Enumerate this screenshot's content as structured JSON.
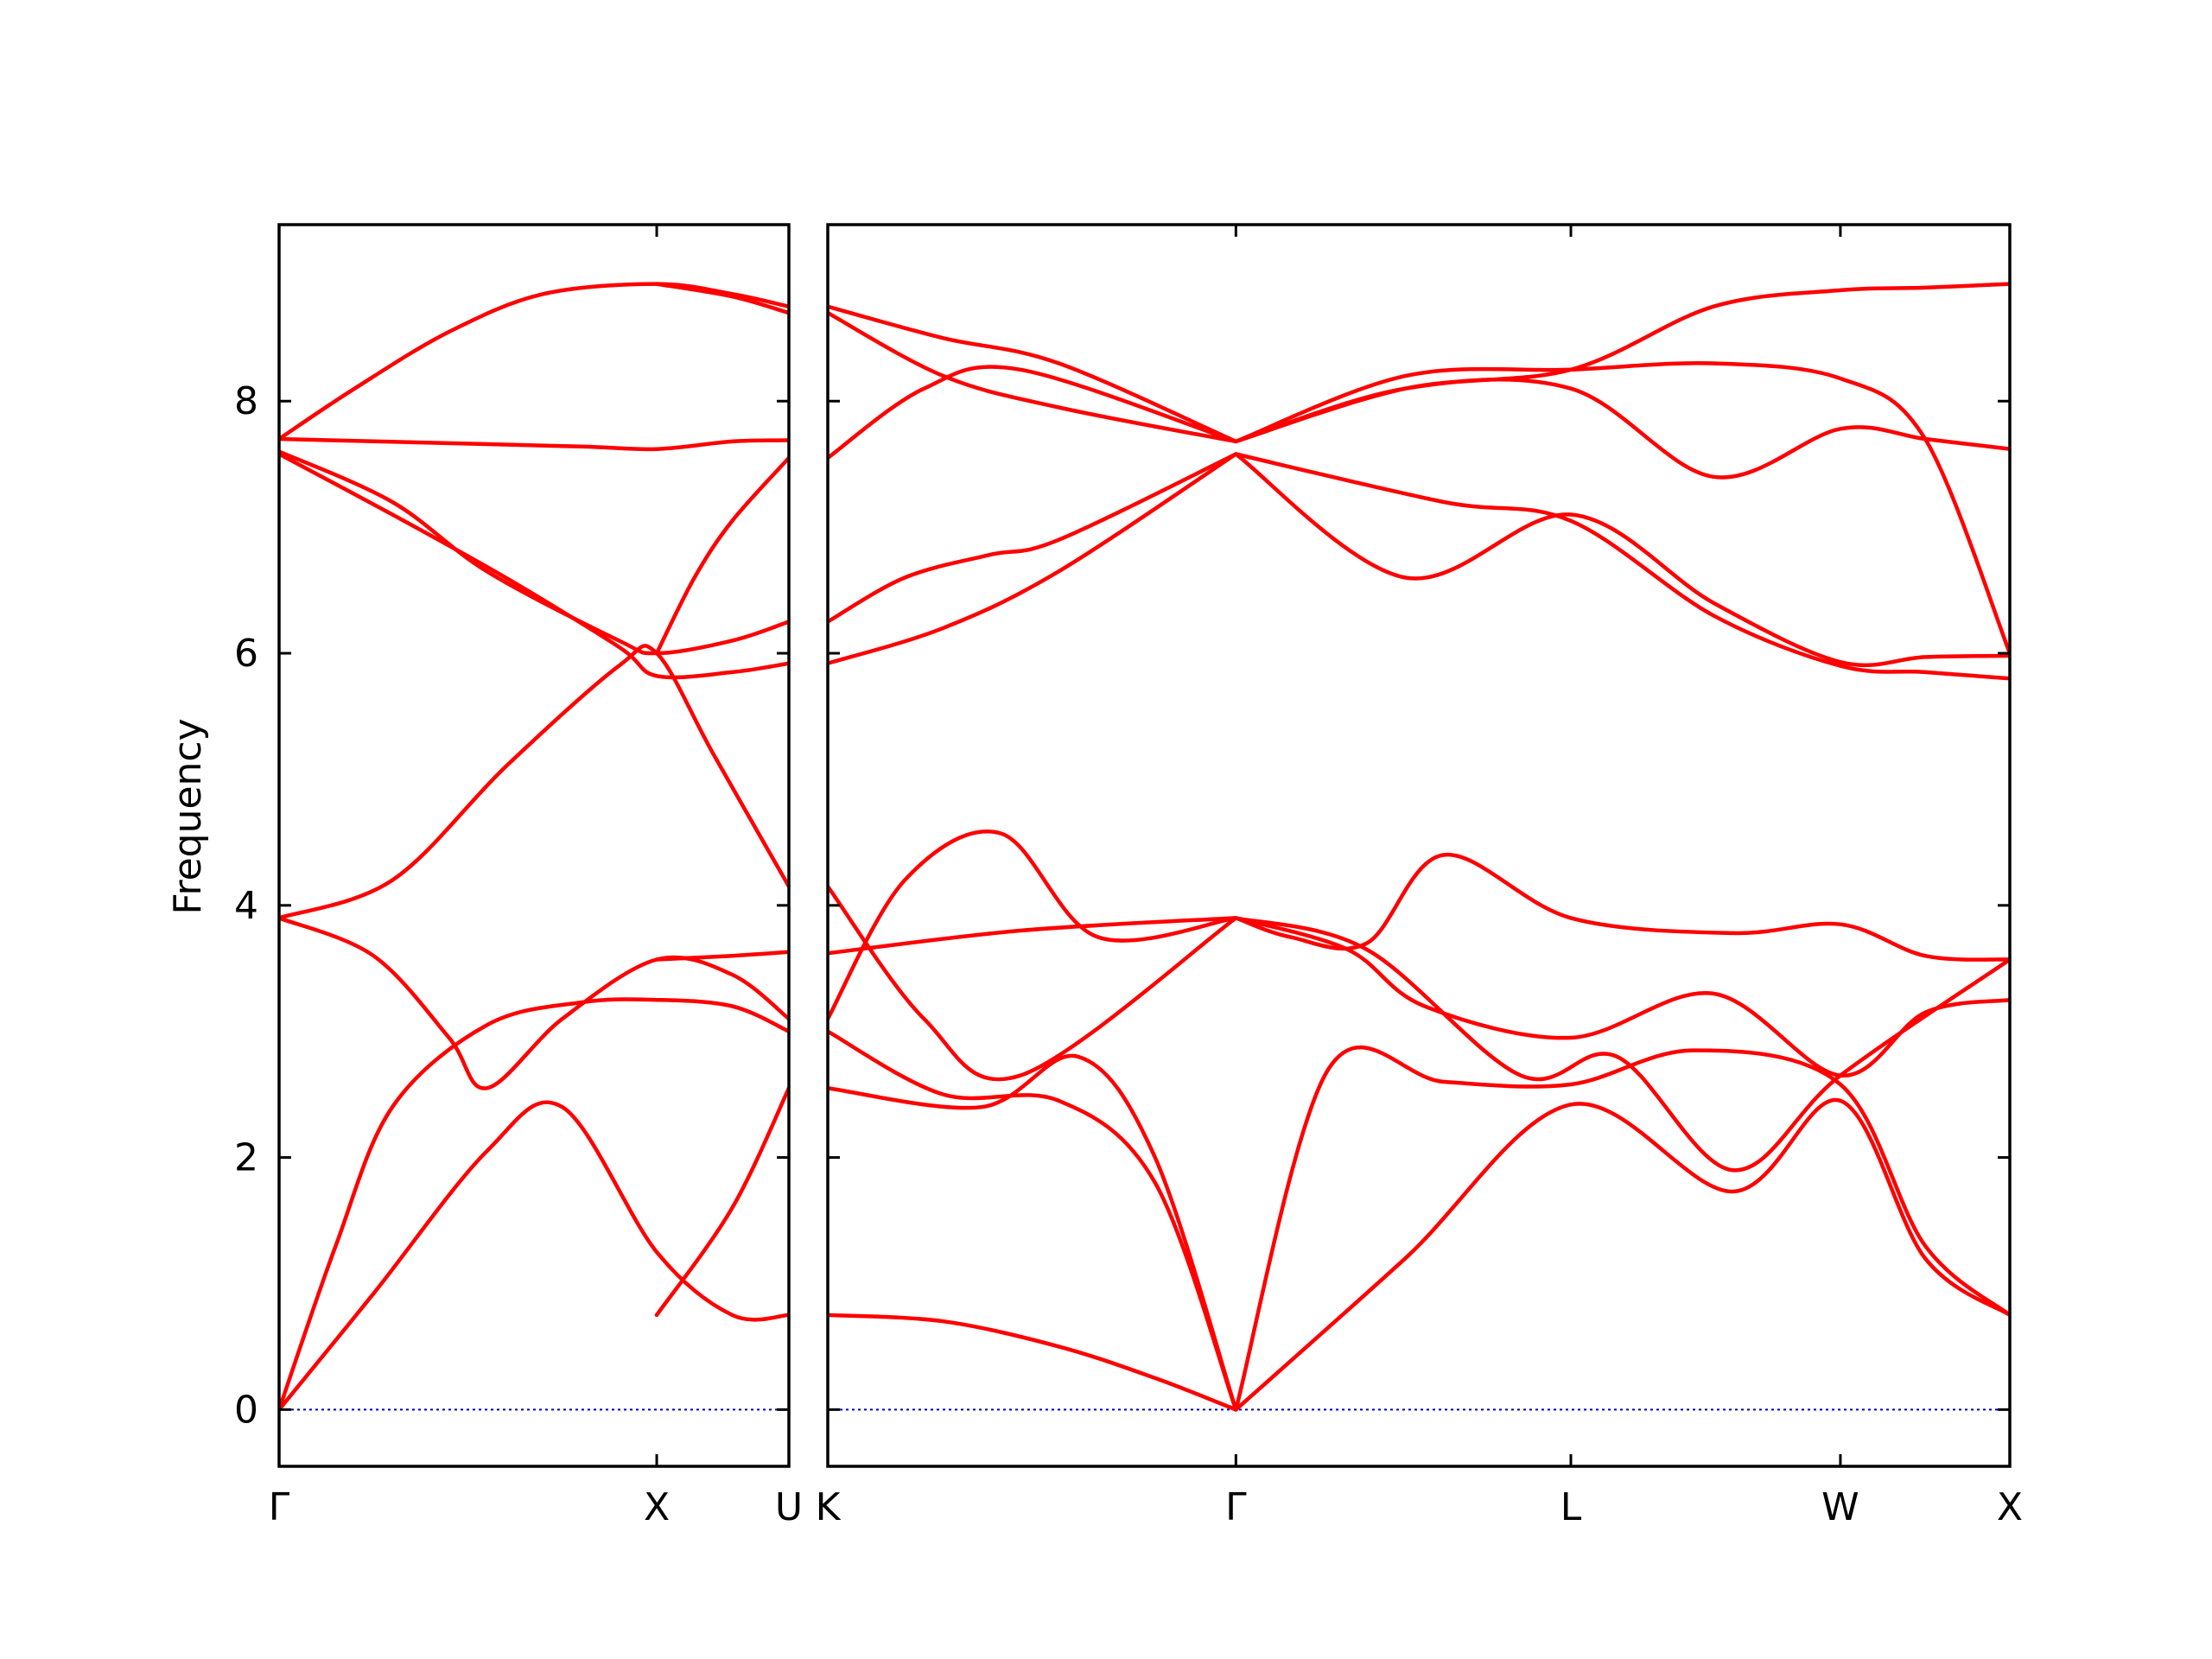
{
  "chart_data": {
    "type": "line",
    "ylabel": "Frequency",
    "ylim": [
      -0.45,
      9.4
    ],
    "yticks": [
      0,
      2,
      4,
      6,
      8
    ],
    "ytick_labels": [
      "0",
      "2",
      "4",
      "6",
      "8"
    ],
    "grid": false,
    "legend": "none",
    "line_color": "#ff0000",
    "zero_line_color": "#0000cc",
    "panels": [
      {
        "xlim": [
          0,
          1.35
        ],
        "xticks": [
          0,
          1.0,
          1.35
        ],
        "xtick_labels": [
          "Γ",
          "X",
          "U"
        ],
        "series": [
          {
            "x": [
              0,
              0.25,
              0.55,
              0.75,
              1.0,
              1.2,
              1.35
            ],
            "y": [
              0,
              0.92,
              2.05,
              2.4,
              1.25,
              0.75,
              0.75
            ]
          },
          {
            "x": [
              0,
              0.15,
              0.3,
              0.55,
              0.8,
              1.0,
              1.2,
              1.35
            ],
            "y": [
              0,
              1.3,
              2.4,
              3.05,
              3.23,
              3.25,
              3.2,
              3.0
            ]
          },
          {
            "x": [
              0,
              0.25,
              0.45,
              0.55,
              0.75,
              1.0,
              1.2,
              1.35
            ],
            "y": [
              3.9,
              3.6,
              2.95,
              2.55,
              3.1,
              3.57,
              3.45,
              3.1
            ]
          },
          {
            "x": [
              0,
              0.3,
              0.6,
              0.9,
              1.0,
              1.15,
              1.35
            ],
            "y": [
              3.9,
              4.2,
              5.1,
              5.9,
              6.0,
              5.2,
              4.15
            ]
          },
          {
            "x": [
              0,
              0.3,
              0.6,
              0.9,
              1.0,
              1.2,
              1.35
            ],
            "y": [
              7.58,
              7.1,
              6.6,
              6.05,
              5.82,
              5.85,
              5.92
            ]
          },
          {
            "x": [
              0,
              0.3,
              0.55,
              0.9,
              1.0,
              1.2,
              1.35
            ],
            "y": [
              7.6,
              7.2,
              6.65,
              6.1,
              6.0,
              6.1,
              6.25
            ]
          },
          {
            "x": [
              0,
              0.4,
              0.8,
              1.0,
              1.2,
              1.35
            ],
            "y": [
              7.7,
              7.67,
              7.64,
              7.62,
              7.68,
              7.69
            ]
          },
          {
            "x": [
              0,
              0.2,
              0.45,
              0.7,
              1.0,
              1.2,
              1.35
            ],
            "y": [
              7.7,
              8.1,
              8.55,
              8.85,
              8.93,
              8.85,
              8.75
            ]
          },
          {
            "x": [
              1.0,
              1.1,
              1.2,
              1.35
            ],
            "y": [
              6.0,
              6.6,
              7.05,
              7.55
            ]
          },
          {
            "x": [
              1.0,
              1.2,
              1.35
            ],
            "y": [
              0.75,
              1.6,
              2.55
            ]
          },
          {
            "x": [
              1.0,
              1.2,
              1.35
            ],
            "y": [
              3.57,
              3.6,
              3.63
            ]
          },
          {
            "x": [
              1.0,
              1.2,
              1.35
            ],
            "y": [
              8.93,
              8.83,
              8.7
            ]
          }
        ]
      },
      {
        "xlim": [
          0,
          3.07
        ],
        "xticks": [
          0,
          1.06,
          1.93,
          2.63,
          3.07
        ],
        "xtick_labels": [
          "K",
          "Γ",
          "L",
          "W",
          "X"
        ],
        "series": [
          {
            "x": [
              0,
              0.3,
              0.6,
              0.85,
              1.06
            ],
            "y": [
              0.75,
              0.7,
              0.5,
              0.25,
              0
            ]
          },
          {
            "x": [
              0,
              0.3,
              0.6,
              0.85,
              1.06
            ],
            "y": [
              3.0,
              2.5,
              2.45,
              1.8,
              0
            ]
          },
          {
            "x": [
              0,
              0.4,
              0.65,
              0.85,
              1.06
            ],
            "y": [
              2.55,
              2.4,
              2.8,
              2.0,
              0
            ]
          },
          {
            "x": [
              1.06,
              1.5,
              1.93,
              2.35,
              2.63,
              2.85,
              3.07
            ],
            "y": [
              0,
              1.2,
              2.42,
              1.73,
              2.45,
              1.2,
              0.75
            ]
          },
          {
            "x": [
              1.06,
              1.3,
              1.6,
              1.93,
              2.25,
              2.63,
              2.85,
              3.07
            ],
            "y": [
              0,
              2.7,
              2.6,
              2.58,
              2.85,
              2.58,
              1.3,
              0.75
            ]
          },
          {
            "x": [
              1.06,
              1.35,
              1.55,
              1.93,
              2.3,
              2.63,
              2.85,
              3.07
            ],
            "y": [
              3.9,
              3.65,
              3.2,
              2.95,
              3.3,
              2.65,
              3.15,
              3.25
            ]
          },
          {
            "x": [
              1.06,
              1.2,
              1.4,
              1.6,
              1.93,
              2.35,
              2.63,
              2.85,
              3.07
            ],
            "y": [
              3.9,
              3.75,
              3.7,
              4.4,
              3.9,
              3.78,
              3.85,
              3.6,
              3.57
            ]
          },
          {
            "x": [
              1.06,
              1.4,
              1.8,
              2.05,
              2.35,
              2.63,
              3.07
            ],
            "y": [
              3.9,
              3.65,
              2.65,
              2.8,
              1.9,
              2.65,
              3.57
            ]
          },
          {
            "x": [
              1.06,
              1.5,
              1.93,
              2.3,
              2.63,
              2.85,
              3.07
            ],
            "y": [
              7.58,
              6.6,
              7.1,
              6.4,
              5.93,
              5.97,
              5.98
            ]
          },
          {
            "x": [
              1.06,
              1.6,
              1.93,
              2.3,
              2.63,
              2.85,
              3.07
            ],
            "y": [
              7.58,
              7.2,
              7.05,
              6.3,
              5.9,
              5.85,
              5.8
            ]
          },
          {
            "x": [
              1.06,
              1.5,
              1.93,
              2.3,
              2.63,
              2.85,
              3.07
            ],
            "y": [
              7.68,
              8.2,
              8.25,
              8.3,
              8.18,
              7.7,
              6.0
            ]
          },
          {
            "x": [
              1.06,
              1.5,
              1.93,
              2.3,
              2.63,
              2.85,
              3.07
            ],
            "y": [
              7.68,
              8.1,
              8.1,
              7.4,
              7.78,
              7.7,
              7.62
            ]
          },
          {
            "x": [
              1.06,
              1.5,
              1.93,
              2.3,
              2.63,
              2.85,
              3.07
            ],
            "y": [
              7.68,
              8.1,
              8.25,
              8.75,
              8.88,
              8.9,
              8.93
            ]
          },
          {
            "x": [
              0,
              0.2,
              0.45,
              0.7,
              1.06
            ],
            "y": [
              3.1,
              4.2,
              4.57,
              3.75,
              3.9
            ]
          },
          {
            "x": [
              0,
              0.5,
              1.06
            ],
            "y": [
              3.62,
              3.8,
              3.9
            ]
          },
          {
            "x": [
              0,
              0.25,
              0.5,
              1.06
            ],
            "y": [
              4.15,
              3.1,
              2.65,
              3.9
            ]
          },
          {
            "x": [
              0,
              0.2,
              0.42,
              0.6,
              1.06
            ],
            "y": [
              6.25,
              6.6,
              6.78,
              6.9,
              7.58
            ]
          },
          {
            "x": [
              0,
              0.3,
              0.6,
              1.06
            ],
            "y": [
              5.92,
              6.2,
              6.65,
              7.58
            ]
          },
          {
            "x": [
              0,
              0.25,
              0.5,
              1.06
            ],
            "y": [
              7.55,
              8.1,
              8.25,
              7.68
            ]
          },
          {
            "x": [
              0,
              0.3,
              0.6,
              1.06
            ],
            "y": [
              8.75,
              8.5,
              8.3,
              7.68
            ]
          },
          {
            "x": [
              0,
              0.3,
              0.6,
              1.06
            ],
            "y": [
              8.7,
              8.2,
              7.95,
              7.68
            ]
          }
        ]
      }
    ]
  }
}
